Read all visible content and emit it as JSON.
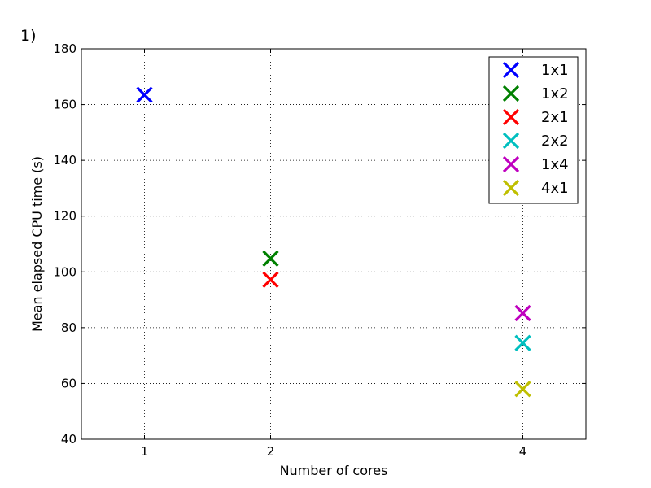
{
  "panel_label": "1)",
  "chart_data": {
    "type": "scatter",
    "title": "",
    "xlabel": "Number of cores",
    "ylabel": "Mean elapsed CPU time (s)",
    "xlim": [
      0.5,
      4.5
    ],
    "ylim": [
      40,
      180
    ],
    "xticks": [
      1,
      2,
      4
    ],
    "xtick_labels": [
      "1",
      "2",
      "4"
    ],
    "yticks": [
      40,
      60,
      80,
      100,
      120,
      140,
      160,
      180
    ],
    "ytick_labels": [
      "40",
      "60",
      "80",
      "100",
      "120",
      "140",
      "160",
      "180"
    ],
    "grid": true,
    "legend_position": "top-right",
    "marker": "x",
    "series": [
      {
        "name": "1x1",
        "color": "#0000ff",
        "x": [
          1
        ],
        "y": [
          163.5
        ]
      },
      {
        "name": "1x2",
        "color": "#008000",
        "x": [
          2
        ],
        "y": [
          104.8
        ]
      },
      {
        "name": "2x1",
        "color": "#ff0000",
        "x": [
          2
        ],
        "y": [
          97.2
        ]
      },
      {
        "name": "2x2",
        "color": "#00bfbf",
        "x": [
          4
        ],
        "y": [
          74.5
        ]
      },
      {
        "name": "1x4",
        "color": "#bf00bf",
        "x": [
          4
        ],
        "y": [
          85.2
        ]
      },
      {
        "name": "4x1",
        "color": "#bfbf00",
        "x": [
          4
        ],
        "y": [
          58.0
        ]
      }
    ]
  }
}
